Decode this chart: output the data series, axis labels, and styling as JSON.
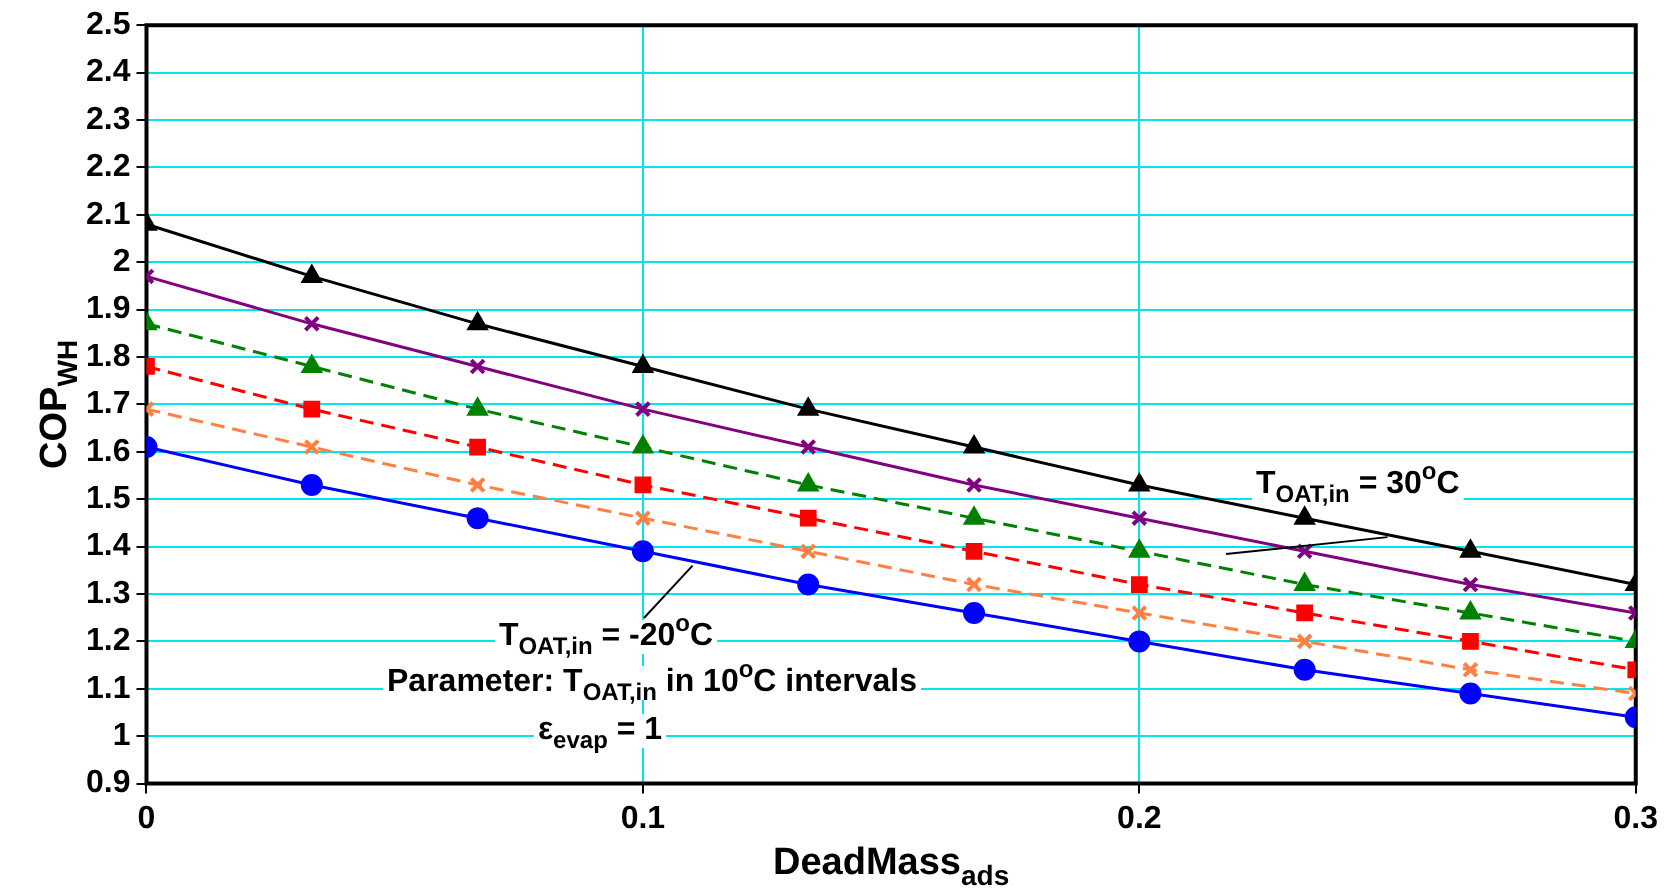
{
  "chart_data": {
    "type": "line",
    "xlabel": "DeadMass$_{ads}$",
    "ylabel": "COP$_{WH}$",
    "x": [
      0,
      0.0333,
      0.0667,
      0.1,
      0.1333,
      0.1667,
      0.2,
      0.2333,
      0.2667,
      0.3
    ],
    "xlim": [
      0,
      0.3
    ],
    "xticks": [
      0,
      0.1,
      0.2,
      0.3
    ],
    "ylim": [
      0.9,
      2.5
    ],
    "yticks": [
      0.9,
      1,
      1.1,
      1.2,
      1.3,
      1.4,
      1.5,
      1.6,
      1.7,
      1.8,
      1.9,
      2,
      2.1,
      2.2,
      2.3,
      2.4,
      2.5
    ],
    "grid": true,
    "legend": false,
    "series": [
      {
        "color": "#000000",
        "marker": "triangle",
        "line_style": "solid",
        "values": [
          2.08,
          1.97,
          1.87,
          1.78,
          1.69,
          1.61,
          1.53,
          1.46,
          1.39,
          1.32
        ]
      },
      {
        "color": "#800080",
        "marker": "cross",
        "line_style": "solid",
        "values": [
          1.97,
          1.87,
          1.78,
          1.69,
          1.61,
          1.53,
          1.46,
          1.39,
          1.32,
          1.26
        ]
      },
      {
        "color": "#008000",
        "marker": "triangle",
        "line_style": "dashed",
        "values": [
          1.87,
          1.78,
          1.69,
          1.61,
          1.53,
          1.46,
          1.39,
          1.32,
          1.26,
          1.2
        ]
      },
      {
        "color": "#ff0000",
        "marker": "square",
        "line_style": "dashed",
        "values": [
          1.78,
          1.69,
          1.61,
          1.53,
          1.46,
          1.39,
          1.32,
          1.26,
          1.2,
          1.14
        ]
      },
      {
        "color": "#ff8040",
        "marker": "cross",
        "line_style": "dashed",
        "values": [
          1.69,
          1.61,
          1.53,
          1.46,
          1.39,
          1.32,
          1.26,
          1.2,
          1.14,
          1.09
        ]
      },
      {
        "color": "#0000ff",
        "marker": "circle",
        "line_style": "solid",
        "values": [
          1.61,
          1.53,
          1.46,
          1.39,
          1.32,
          1.26,
          1.2,
          1.14,
          1.09,
          1.04
        ]
      }
    ],
    "annotations": [
      {
        "text": "T$_{OAT,in}$ = 30$^{o}$C",
        "x": 0.25,
        "y": 1.42
      },
      {
        "text": "T$_{OAT,in}$ = -20$^{o}$C",
        "x": 0.11,
        "y": 1.36
      },
      "Parameter: T$_{OAT,in}$ in 10$^{o}$C intervals",
      "ε$_{evap}$ = 1"
    ]
  }
}
